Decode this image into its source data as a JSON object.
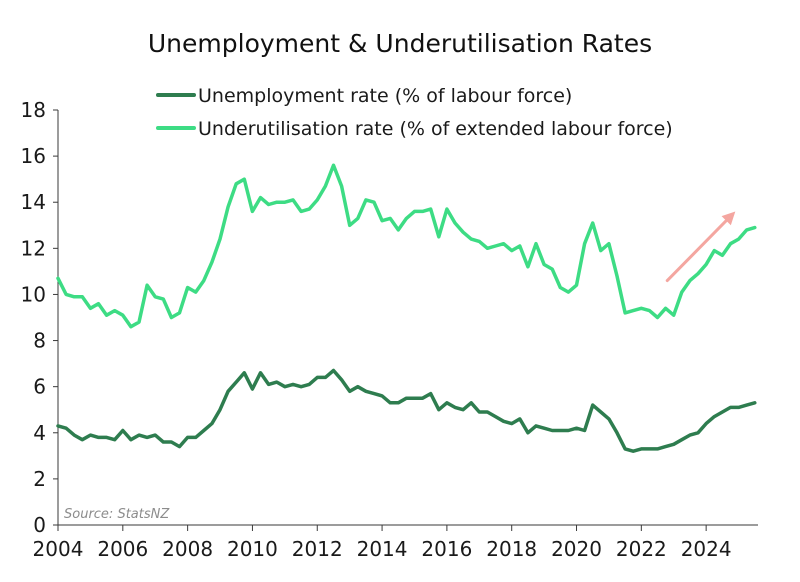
{
  "chart_data": {
    "type": "line",
    "title": "Unemployment & Underutilisation Rates",
    "source": "Source: StatsNZ",
    "xlabel": "",
    "ylabel": "",
    "xlim": [
      2004,
      2025.6
    ],
    "ylim": [
      0,
      18
    ],
    "x_ticks": [
      "2004",
      "2006",
      "2008",
      "2010",
      "2012",
      "2014",
      "2016",
      "2018",
      "2020",
      "2022",
      "2024"
    ],
    "y_ticks": [
      "0",
      "2",
      "4",
      "6",
      "8",
      "10",
      "12",
      "14",
      "16",
      "18"
    ],
    "grid": false,
    "legend_position": "top",
    "series": [
      {
        "name": "Unemployment rate (% of labour force)",
        "color": "#2e7d4f",
        "x": [
          2004.0,
          2004.25,
          2004.5,
          2004.75,
          2005.0,
          2005.25,
          2005.5,
          2005.75,
          2006.0,
          2006.25,
          2006.5,
          2006.75,
          2007.0,
          2007.25,
          2007.5,
          2007.75,
          2008.0,
          2008.25,
          2008.5,
          2008.75,
          2009.0,
          2009.25,
          2009.5,
          2009.75,
          2010.0,
          2010.25,
          2010.5,
          2010.75,
          2011.0,
          2011.25,
          2011.5,
          2011.75,
          2012.0,
          2012.25,
          2012.5,
          2012.75,
          2013.0,
          2013.25,
          2013.5,
          2013.75,
          2014.0,
          2014.25,
          2014.5,
          2014.75,
          2015.0,
          2015.25,
          2015.5,
          2015.75,
          2016.0,
          2016.25,
          2016.5,
          2016.75,
          2017.0,
          2017.25,
          2017.5,
          2017.75,
          2018.0,
          2018.25,
          2018.5,
          2018.75,
          2019.0,
          2019.25,
          2019.5,
          2019.75,
          2020.0,
          2020.25,
          2020.5,
          2020.75,
          2021.0,
          2021.25,
          2021.5,
          2021.75,
          2022.0,
          2022.25,
          2022.5,
          2022.75,
          2023.0,
          2023.25,
          2023.5,
          2023.75,
          2024.0,
          2024.25,
          2024.5,
          2024.75,
          2025.0,
          2025.25,
          2025.5
        ],
        "values": [
          4.3,
          4.2,
          3.9,
          3.7,
          3.9,
          3.8,
          3.8,
          3.7,
          4.1,
          3.7,
          3.9,
          3.8,
          3.9,
          3.6,
          3.6,
          3.4,
          3.8,
          3.8,
          4.1,
          4.4,
          5.0,
          5.8,
          6.2,
          6.6,
          5.9,
          6.6,
          6.1,
          6.2,
          6.0,
          6.1,
          6.0,
          6.1,
          6.4,
          6.4,
          6.7,
          6.3,
          5.8,
          6.0,
          5.8,
          5.7,
          5.6,
          5.3,
          5.3,
          5.5,
          5.5,
          5.5,
          5.7,
          5.0,
          5.3,
          5.1,
          5.0,
          5.3,
          4.9,
          4.9,
          4.7,
          4.5,
          4.4,
          4.6,
          4.0,
          4.3,
          4.2,
          4.1,
          4.1,
          4.1,
          4.2,
          4.1,
          5.2,
          4.9,
          4.6,
          4.0,
          3.3,
          3.2,
          3.3,
          3.3,
          3.3,
          3.4,
          3.5,
          3.7,
          3.9,
          4.0,
          4.4,
          4.7,
          4.9,
          5.1,
          5.1,
          5.2,
          5.3
        ]
      },
      {
        "name": "Underutilisation rate (% of extended labour force)",
        "color": "#3ddc84",
        "x": [
          2004.0,
          2004.25,
          2004.5,
          2004.75,
          2005.0,
          2005.25,
          2005.5,
          2005.75,
          2006.0,
          2006.25,
          2006.5,
          2006.75,
          2007.0,
          2007.25,
          2007.5,
          2007.75,
          2008.0,
          2008.25,
          2008.5,
          2008.75,
          2009.0,
          2009.25,
          2009.5,
          2009.75,
          2010.0,
          2010.25,
          2010.5,
          2010.75,
          2011.0,
          2011.25,
          2011.5,
          2011.75,
          2012.0,
          2012.25,
          2012.5,
          2012.75,
          2013.0,
          2013.25,
          2013.5,
          2013.75,
          2014.0,
          2014.25,
          2014.5,
          2014.75,
          2015.0,
          2015.25,
          2015.5,
          2015.75,
          2016.0,
          2016.25,
          2016.5,
          2016.75,
          2017.0,
          2017.25,
          2017.5,
          2017.75,
          2018.0,
          2018.25,
          2018.5,
          2018.75,
          2019.0,
          2019.25,
          2019.5,
          2019.75,
          2020.0,
          2020.25,
          2020.5,
          2020.75,
          2021.0,
          2021.25,
          2021.5,
          2021.75,
          2022.0,
          2022.25,
          2022.5,
          2022.75,
          2023.0,
          2023.25,
          2023.5,
          2023.75,
          2024.0,
          2024.25,
          2024.5,
          2024.75,
          2025.0,
          2025.25,
          2025.5
        ],
        "values": [
          10.7,
          10.0,
          9.9,
          9.9,
          9.4,
          9.6,
          9.1,
          9.3,
          9.1,
          8.6,
          8.8,
          10.4,
          9.9,
          9.8,
          9.0,
          9.2,
          10.3,
          10.1,
          10.6,
          11.4,
          12.4,
          13.8,
          14.8,
          15.0,
          13.6,
          14.2,
          13.9,
          14.0,
          14.0,
          14.1,
          13.6,
          13.7,
          14.1,
          14.7,
          15.6,
          14.7,
          13.0,
          13.3,
          14.1,
          14.0,
          13.2,
          13.3,
          12.8,
          13.3,
          13.6,
          13.6,
          13.7,
          12.5,
          13.7,
          13.1,
          12.7,
          12.4,
          12.3,
          12.0,
          12.1,
          12.2,
          11.9,
          12.1,
          11.2,
          12.2,
          11.3,
          11.1,
          10.3,
          10.1,
          10.4,
          12.2,
          13.1,
          11.9,
          12.2,
          10.8,
          9.2,
          9.3,
          9.4,
          9.3,
          9.0,
          9.4,
          9.1,
          10.1,
          10.6,
          10.9,
          11.3,
          11.9,
          11.7,
          12.2,
          12.4,
          12.8,
          12.9
        ]
      }
    ],
    "annotations": [
      {
        "type": "arrow",
        "color": "#f4a6a0",
        "from": [
          2022.8,
          10.6
        ],
        "to": [
          2024.9,
          13.6
        ]
      }
    ]
  }
}
